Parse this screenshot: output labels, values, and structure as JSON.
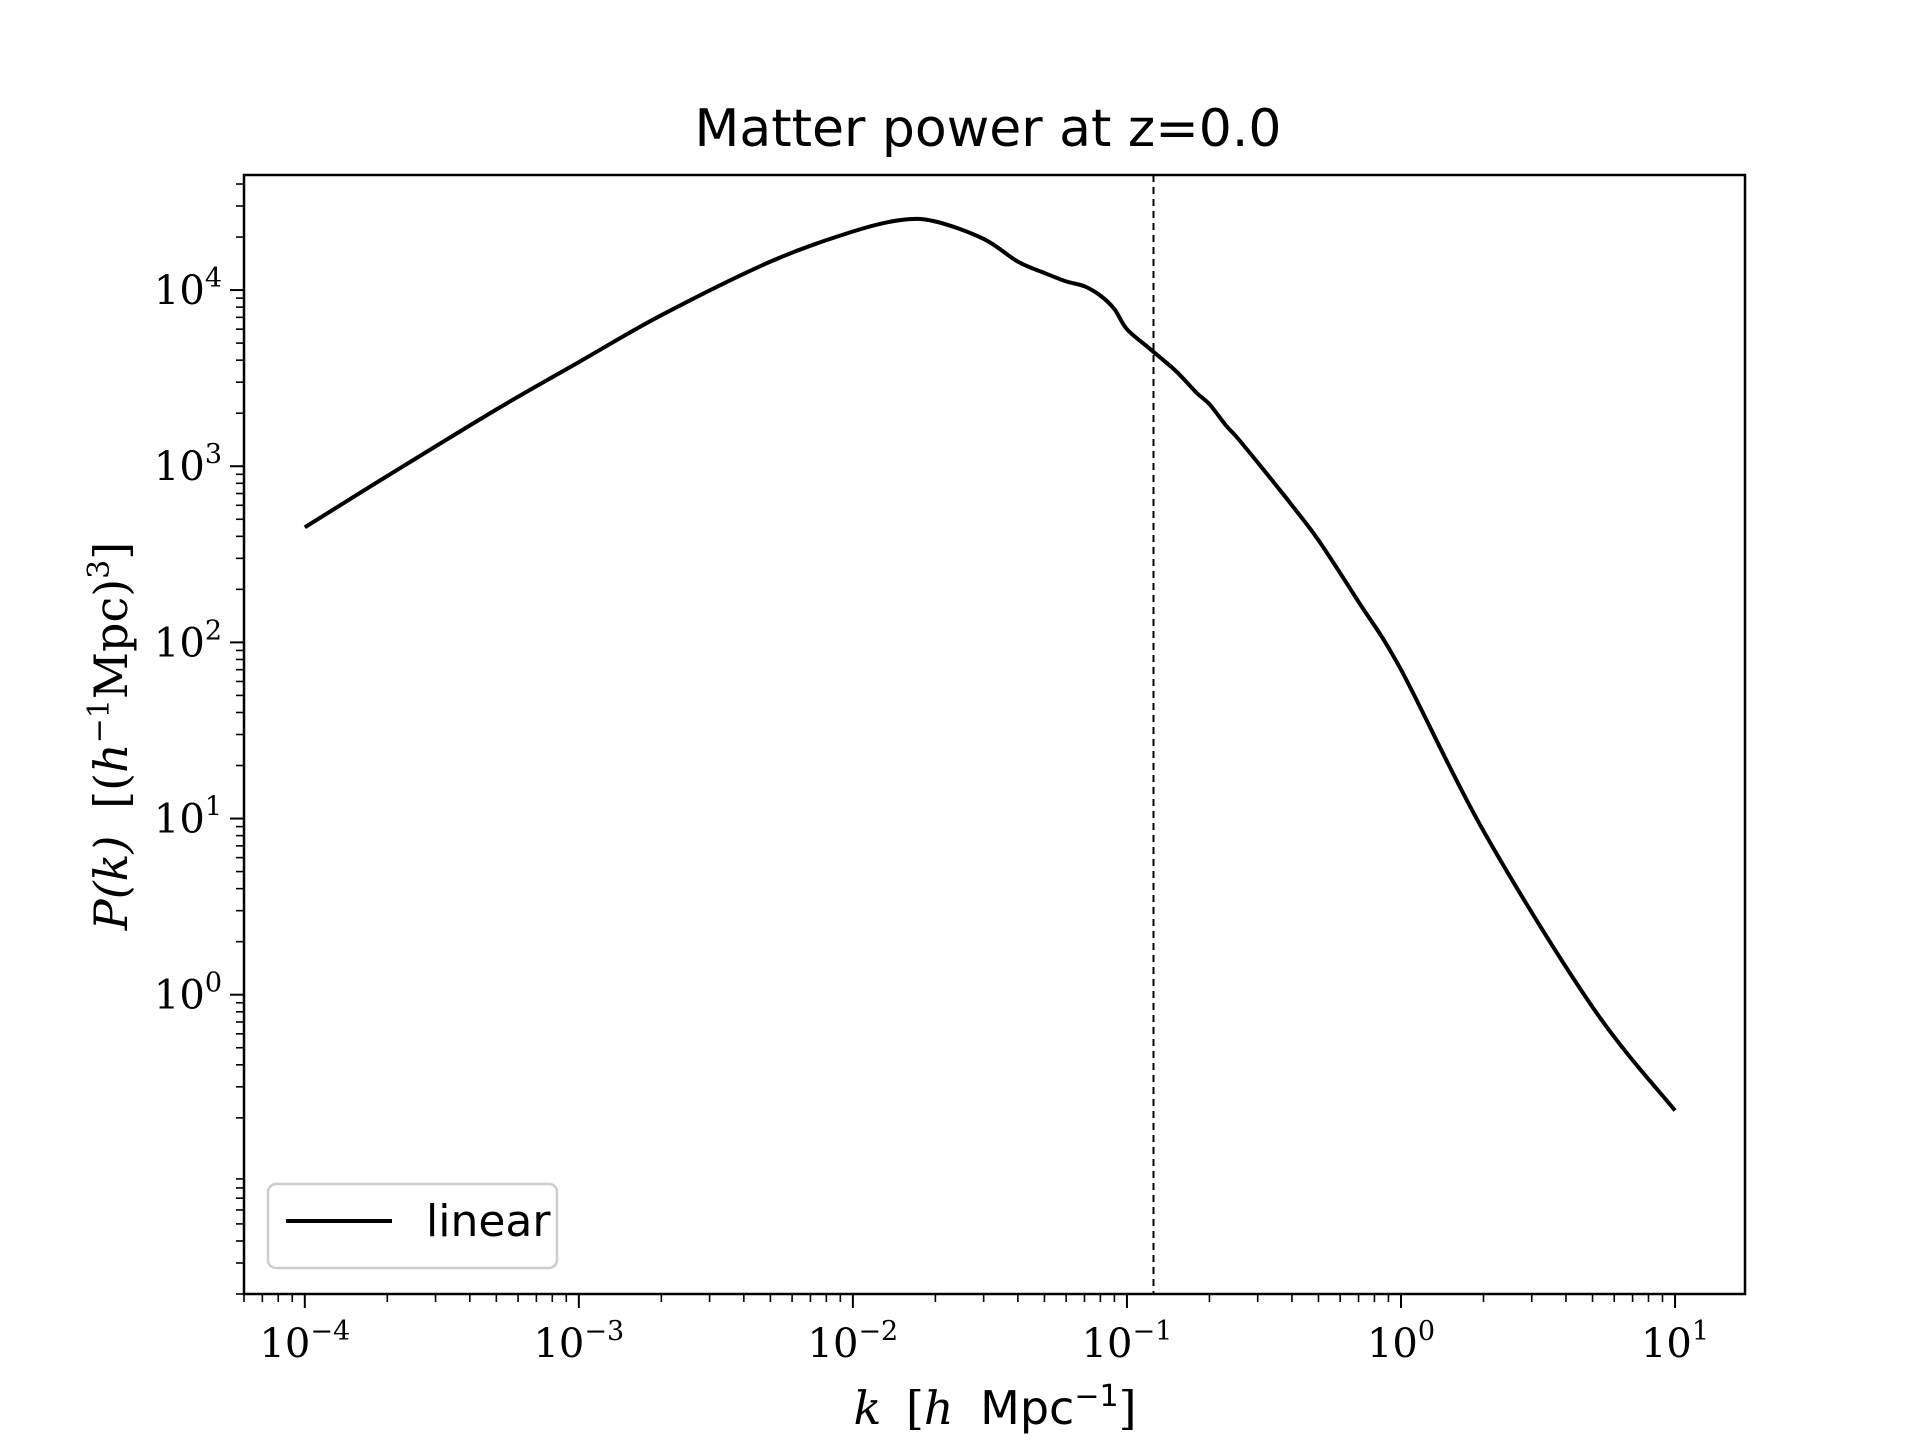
{
  "chart_data": {
    "type": "line",
    "title": "Matter power at z=0.0",
    "xlabel": {
      "var": "k",
      "open": "[",
      "h": "h",
      "unit": "Mpc",
      "exp": "−1",
      "close": "]"
    },
    "ylabel": {
      "pk": "P(k)",
      "open": "[(",
      "h": "h",
      "exp1": "−1",
      "unit": "Mpc)",
      "exp2": "3",
      "close": "]"
    },
    "x_scale": "log",
    "y_scale": "log",
    "xlim": [
      6e-05,
      18
    ],
    "ylim": [
      0.02,
      45000
    ],
    "x_ticks": [
      {
        "value": 0.0001,
        "base": "10",
        "exp": "−4"
      },
      {
        "value": 0.001,
        "base": "10",
        "exp": "−3"
      },
      {
        "value": 0.01,
        "base": "10",
        "exp": "−2"
      },
      {
        "value": 0.1,
        "base": "10",
        "exp": "−1"
      },
      {
        "value": 1,
        "base": "10",
        "exp": "0"
      },
      {
        "value": 10,
        "base": "10",
        "exp": "1"
      }
    ],
    "y_ticks": [
      {
        "value": 1,
        "base": "10",
        "exp": "0"
      },
      {
        "value": 10,
        "base": "10",
        "exp": "1"
      },
      {
        "value": 100,
        "base": "10",
        "exp": "2"
      },
      {
        "value": 1000,
        "base": "10",
        "exp": "3"
      },
      {
        "value": 10000,
        "base": "10",
        "exp": "4"
      }
    ],
    "grid": false,
    "legend": {
      "position": "bottom-left",
      "entries": [
        "linear"
      ]
    },
    "series": [
      {
        "name": "linear",
        "color": "#000000",
        "style": "solid",
        "x": [
          0.0001,
          0.0002,
          0.0005,
          0.001,
          0.002,
          0.005,
          0.01,
          0.015,
          0.02,
          0.03,
          0.04,
          0.05,
          0.06,
          0.07,
          0.08,
          0.09,
          0.1,
          0.12,
          0.15,
          0.18,
          0.2,
          0.23,
          0.25,
          0.3,
          0.35,
          0.4,
          0.5,
          0.7,
          1,
          2,
          5,
          10
        ],
        "y": [
          450,
          880,
          2100,
          3900,
          7200,
          14500,
          21500,
          25000,
          24500,
          19500,
          14500,
          12500,
          11200,
          10500,
          9300,
          7800,
          6000,
          4700,
          3500,
          2600,
          2250,
          1700,
          1480,
          1050,
          780,
          600,
          380,
          170,
          70,
          8.5,
          0.85,
          0.22
        ]
      }
    ],
    "vlines": [
      {
        "x": 0.125,
        "style": "dashed",
        "color": "#000000"
      }
    ]
  }
}
